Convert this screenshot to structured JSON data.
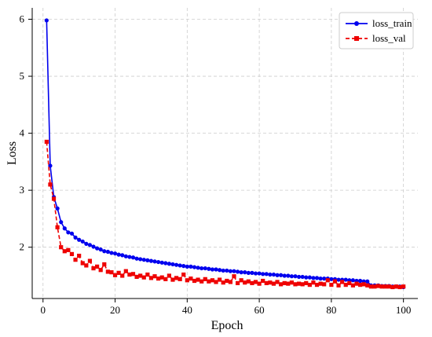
{
  "chart_data": {
    "type": "line",
    "xlabel": "Epoch",
    "ylabel": "Loss",
    "xlim": [
      -3,
      104
    ],
    "ylim": [
      1.1,
      6.2
    ],
    "xticks": [
      0,
      20,
      40,
      60,
      80,
      100
    ],
    "yticks": [
      2,
      3,
      4,
      5,
      6
    ],
    "grid": true,
    "legend_position": "top-right",
    "series": [
      {
        "name": "loss_train",
        "color": "#0000ee",
        "linestyle": "solid",
        "marker": "circle",
        "x": [
          1,
          2,
          3,
          4,
          5,
          6,
          7,
          8,
          9,
          10,
          11,
          12,
          13,
          14,
          15,
          16,
          17,
          18,
          19,
          20,
          21,
          22,
          23,
          24,
          25,
          26,
          27,
          28,
          29,
          30,
          31,
          32,
          33,
          34,
          35,
          36,
          37,
          38,
          39,
          40,
          41,
          42,
          43,
          44,
          45,
          46,
          47,
          48,
          49,
          50,
          51,
          52,
          53,
          54,
          55,
          56,
          57,
          58,
          59,
          60,
          61,
          62,
          63,
          64,
          65,
          66,
          67,
          68,
          69,
          70,
          71,
          72,
          73,
          74,
          75,
          76,
          77,
          78,
          79,
          80,
          81,
          82,
          83,
          84,
          85,
          86,
          87,
          88,
          89,
          90,
          91,
          92,
          93,
          94,
          95,
          96,
          97,
          98,
          99,
          100
        ],
        "y": [
          5.98,
          3.43,
          2.88,
          2.68,
          2.44,
          2.33,
          2.26,
          2.24,
          2.17,
          2.13,
          2.1,
          2.06,
          2.04,
          2.01,
          1.98,
          1.96,
          1.93,
          1.92,
          1.9,
          1.89,
          1.87,
          1.86,
          1.84,
          1.83,
          1.82,
          1.8,
          1.79,
          1.78,
          1.77,
          1.76,
          1.75,
          1.74,
          1.73,
          1.72,
          1.71,
          1.7,
          1.69,
          1.68,
          1.67,
          1.66,
          1.66,
          1.65,
          1.64,
          1.63,
          1.63,
          1.62,
          1.61,
          1.61,
          1.6,
          1.59,
          1.59,
          1.58,
          1.58,
          1.57,
          1.56,
          1.56,
          1.55,
          1.55,
          1.54,
          1.54,
          1.53,
          1.53,
          1.52,
          1.52,
          1.51,
          1.51,
          1.5,
          1.5,
          1.49,
          1.49,
          1.48,
          1.48,
          1.47,
          1.47,
          1.46,
          1.46,
          1.45,
          1.45,
          1.45,
          1.44,
          1.44,
          1.43,
          1.43,
          1.43,
          1.42,
          1.42,
          1.41,
          1.41,
          1.4,
          1.4,
          1.33,
          1.33,
          1.33,
          1.32,
          1.32,
          1.32,
          1.31,
          1.31,
          1.31,
          1.3
        ]
      },
      {
        "name": "loss_val",
        "color": "#ee0000",
        "linestyle": "dashed",
        "marker": "square",
        "x": [
          1,
          2,
          3,
          4,
          5,
          6,
          7,
          8,
          9,
          10,
          11,
          12,
          13,
          14,
          15,
          16,
          17,
          18,
          19,
          20,
          21,
          22,
          23,
          24,
          25,
          26,
          27,
          28,
          29,
          30,
          31,
          32,
          33,
          34,
          35,
          36,
          37,
          38,
          39,
          40,
          41,
          42,
          43,
          44,
          45,
          46,
          47,
          48,
          49,
          50,
          51,
          52,
          53,
          54,
          55,
          56,
          57,
          58,
          59,
          60,
          61,
          62,
          63,
          64,
          65,
          66,
          67,
          68,
          69,
          70,
          71,
          72,
          73,
          74,
          75,
          76,
          77,
          78,
          79,
          80,
          81,
          82,
          83,
          84,
          85,
          86,
          87,
          88,
          89,
          90,
          91,
          92,
          93,
          94,
          95,
          96,
          97,
          98,
          99,
          100
        ],
        "y": [
          3.85,
          3.1,
          2.85,
          2.35,
          2.0,
          1.93,
          1.95,
          1.88,
          1.78,
          1.85,
          1.72,
          1.68,
          1.76,
          1.63,
          1.66,
          1.6,
          1.7,
          1.57,
          1.56,
          1.51,
          1.55,
          1.5,
          1.58,
          1.52,
          1.53,
          1.48,
          1.5,
          1.47,
          1.52,
          1.46,
          1.49,
          1.45,
          1.47,
          1.44,
          1.5,
          1.43,
          1.46,
          1.44,
          1.52,
          1.42,
          1.45,
          1.41,
          1.43,
          1.4,
          1.44,
          1.4,
          1.42,
          1.39,
          1.43,
          1.38,
          1.41,
          1.39,
          1.49,
          1.37,
          1.42,
          1.38,
          1.4,
          1.37,
          1.39,
          1.36,
          1.41,
          1.37,
          1.38,
          1.36,
          1.39,
          1.35,
          1.37,
          1.36,
          1.38,
          1.35,
          1.36,
          1.35,
          1.37,
          1.34,
          1.38,
          1.34,
          1.36,
          1.35,
          1.42,
          1.34,
          1.4,
          1.33,
          1.39,
          1.34,
          1.37,
          1.33,
          1.36,
          1.34,
          1.35,
          1.33,
          1.31,
          1.31,
          1.32,
          1.31,
          1.31,
          1.31,
          1.3,
          1.31,
          1.3,
          1.31
        ]
      }
    ]
  }
}
